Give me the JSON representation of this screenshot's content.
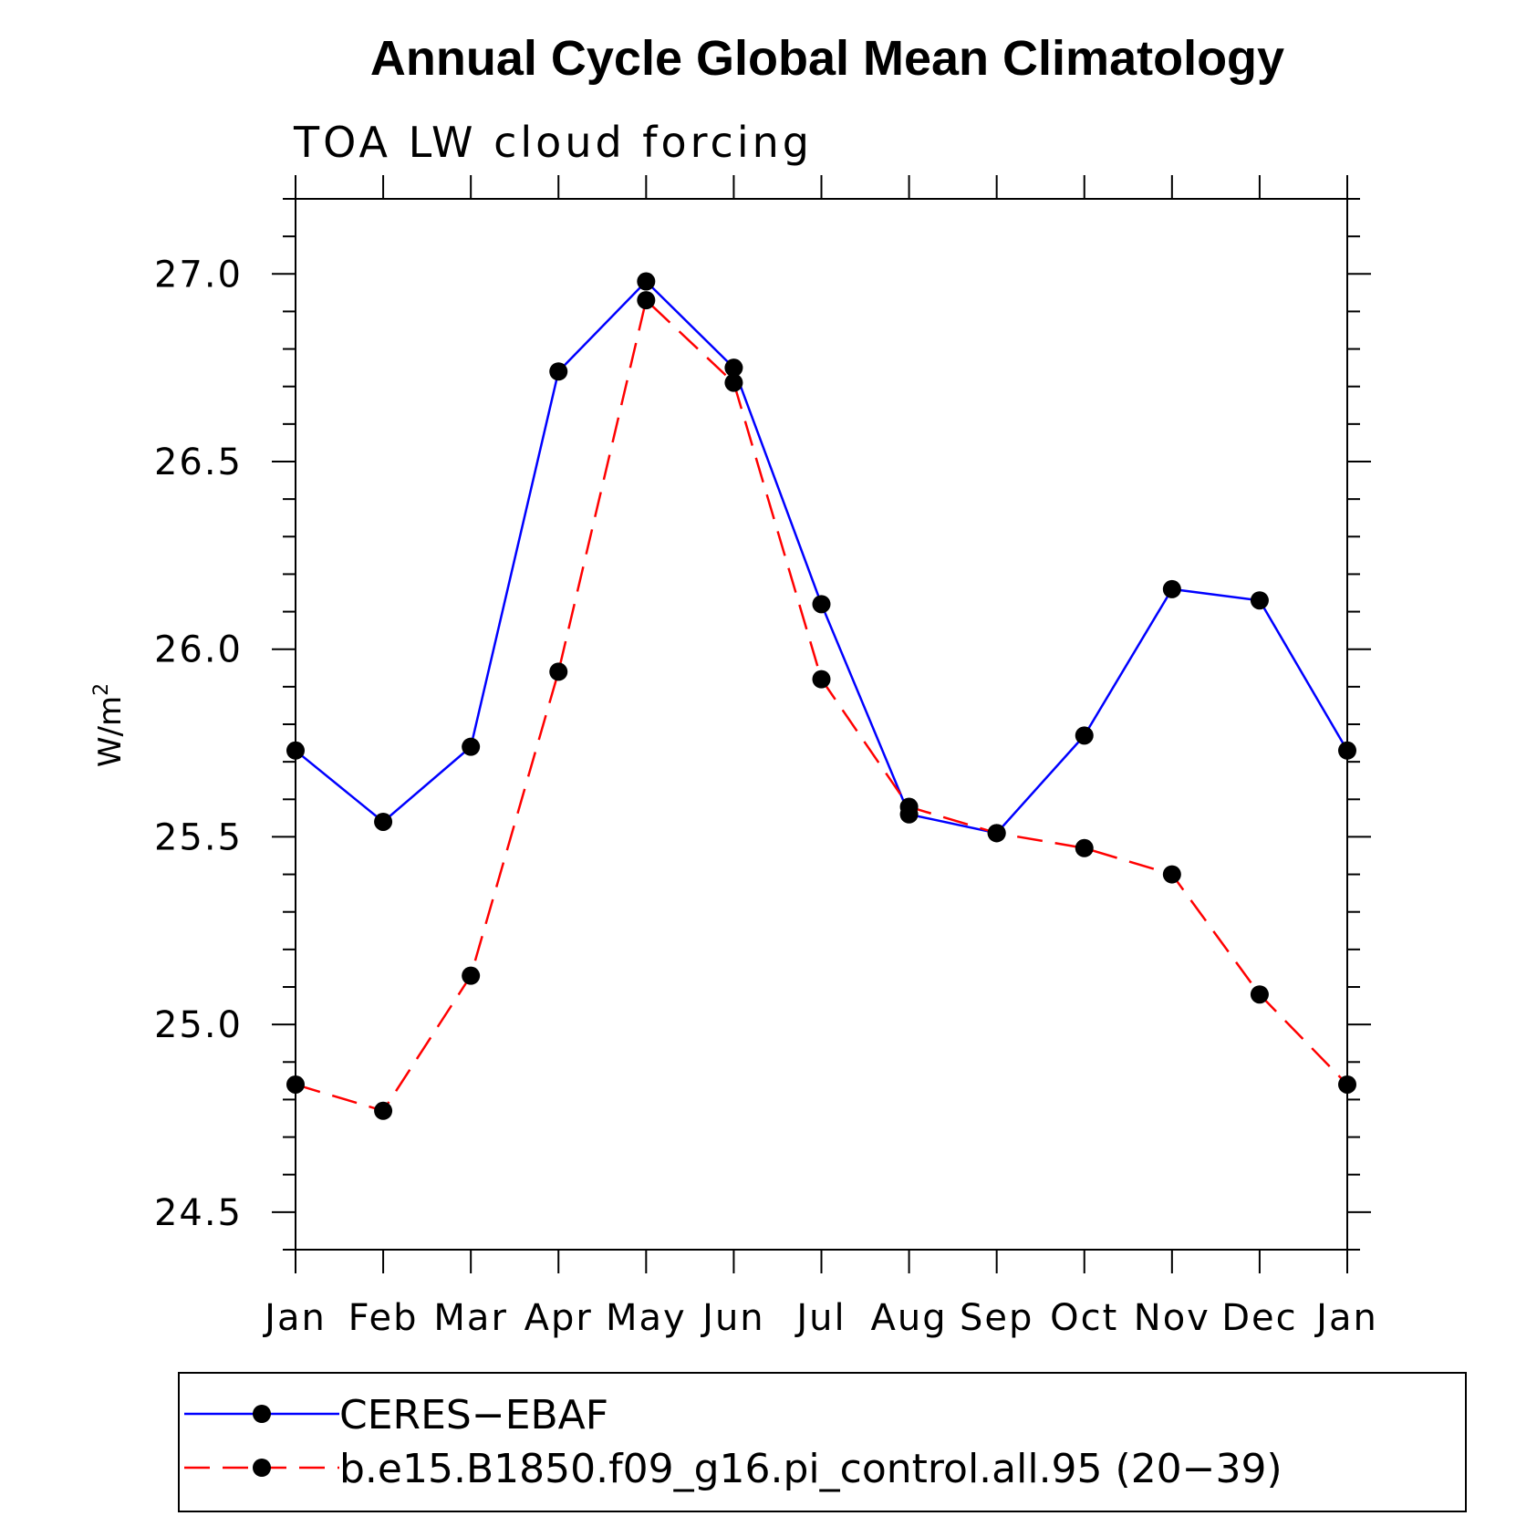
{
  "chart_data": {
    "type": "line",
    "title": "Annual Cycle Global Mean Climatology",
    "subtitle": "TOA LW cloud forcing",
    "ylabel": "W/m",
    "ylabel_sup": "2",
    "xlabel": "",
    "categories": [
      "Jan",
      "Feb",
      "Mar",
      "Apr",
      "May",
      "Jun",
      "Jul",
      "Aug",
      "Sep",
      "Oct",
      "Nov",
      "Dec",
      "Jan"
    ],
    "ylim": [
      24.4,
      27.2
    ],
    "yticks": [
      "24.5",
      "25.0",
      "25.5",
      "26.0",
      "26.5",
      "27.0"
    ],
    "grid": false,
    "legend_position": "bottom",
    "series": [
      {
        "name": "CERES−EBAF",
        "color": "#0000ff",
        "style": "solid",
        "marker": "filled-circle",
        "values": [
          25.73,
          25.54,
          25.74,
          26.74,
          26.98,
          26.75,
          26.12,
          25.56,
          25.51,
          25.77,
          26.16,
          26.13,
          25.73
        ]
      },
      {
        "name": "b.e15.B1850.f09_g16.pi_control.all.95 (20−39)",
        "color": "#ff0000",
        "style": "dashed",
        "marker": "filled-circle",
        "values": [
          24.84,
          24.77,
          25.13,
          25.94,
          26.93,
          26.71,
          25.92,
          25.58,
          25.51,
          25.47,
          25.4,
          25.08,
          24.84
        ]
      }
    ]
  }
}
